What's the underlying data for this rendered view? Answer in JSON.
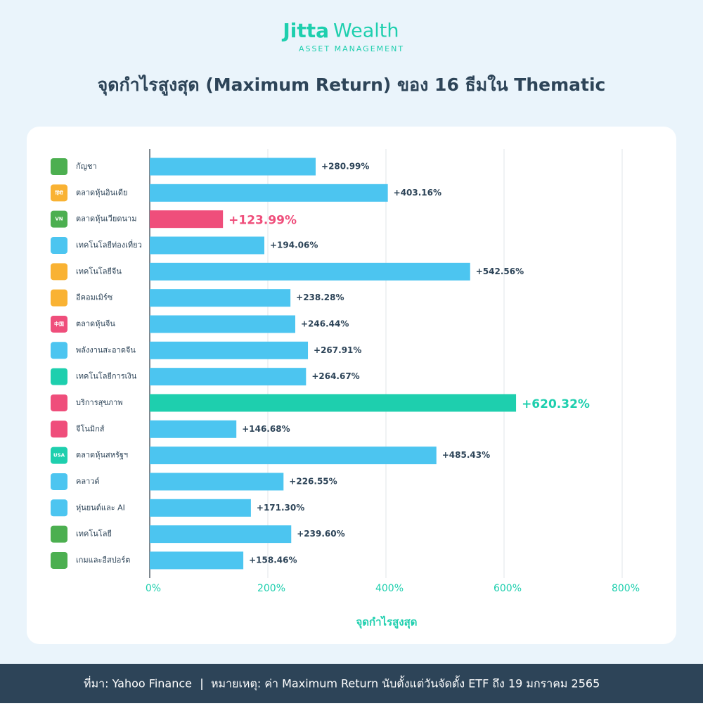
{
  "logo": {
    "brand": "Jitta",
    "brand_suffix": "Wealth",
    "tagline": "ASSET MANAGEMENT"
  },
  "chart_data": {
    "type": "hbar",
    "title": "จุดกำไรสูงสุด (Maximum Return) ของ 16 ธีมใน Thematic",
    "x_label": "จุดกำไรสูงสุด",
    "categories": [
      "กัญชา",
      "ตลาดหุ้นอินเดีย",
      "ตลาดหุ้นเวียดนาม",
      "เทคโนโลยีท่องเที่ยว",
      "เทคโนโลยีจีน",
      "อีคอมเมิร์ซ",
      "ตลาดหุ้นจีน",
      "พลังงานสะอาดจีน",
      "เทคโนโลยีการเงิน",
      "บริการสุขภาพ",
      "จีโนมิกส์",
      "ตลาดหุ้นสหรัฐฯ",
      "คลาวด์",
      "หุ่นยนต์และ AI",
      "เทคโนโลยี",
      "เกมและอีสปอร์ต"
    ],
    "values": [
      280.99,
      403.16,
      123.99,
      194.06,
      542.56,
      238.28,
      246.44,
      267.91,
      264.67,
      620.32,
      146.68,
      485.43,
      226.55,
      171.3,
      239.6,
      158.46
    ],
    "value_labels": [
      "+280.99%",
      "+403.16%",
      "+123.99%",
      "+194.06%",
      "+542.56%",
      "+238.28%",
      "+246.44%",
      "+267.91%",
      "+264.67%",
      "+620.32%",
      "+146.68%",
      "+485.43%",
      "+226.55%",
      "+171.30%",
      "+239.60%",
      "+158.46%"
    ],
    "color": "#4cc5f0",
    "colors": [
      "#4cc5f0",
      "#4cc5f0",
      "#ef4e7b",
      "#4cc5f0",
      "#4cc5f0",
      "#4cc5f0",
      "#4cc5f0",
      "#4cc5f0",
      "#4cc5f0",
      "#1ecfae",
      "#4cc5f0",
      "#4cc5f0",
      "#4cc5f0",
      "#4cc5f0",
      "#4cc5f0",
      "#4cc5f0"
    ],
    "icons": [
      {
        "color": "#4caf50"
      },
      {
        "color": "#f9b233",
        "text": "हिंदी"
      },
      {
        "color": "#4caf50",
        "text": "VN"
      },
      {
        "color": "#4cc5f0"
      },
      {
        "color": "#f9b233"
      },
      {
        "color": "#f9b233"
      },
      {
        "color": "#ef4e7b",
        "text": "中国"
      },
      {
        "color": "#4cc5f0"
      },
      {
        "color": "#1ecfae"
      },
      {
        "color": "#ef4e7b"
      },
      {
        "color": "#ef4e7b"
      },
      {
        "color": "#1ecfae",
        "text": "USA"
      },
      {
        "color": "#4cc5f0"
      },
      {
        "color": "#4cc5f0"
      },
      {
        "color": "#4caf50"
      },
      {
        "color": "#4caf50"
      }
    ],
    "xlim": [
      0,
      800
    ],
    "xticks": [
      {
        "value": 0,
        "label": "0%"
      },
      {
        "value": 200,
        "label": "200%"
      },
      {
        "value": 400,
        "label": "400%"
      },
      {
        "value": 600,
        "label": "600%"
      },
      {
        "value": 800,
        "label": "800%"
      }
    ],
    "grid": true
  },
  "footer": {
    "source": "ที่มา: Yahoo Finance",
    "note": "หมายเหตุ: ค่า Maximum Return นับตั้งแต่วันจัดตั้ง ETF ถึง 19 มกราคม 2565"
  }
}
